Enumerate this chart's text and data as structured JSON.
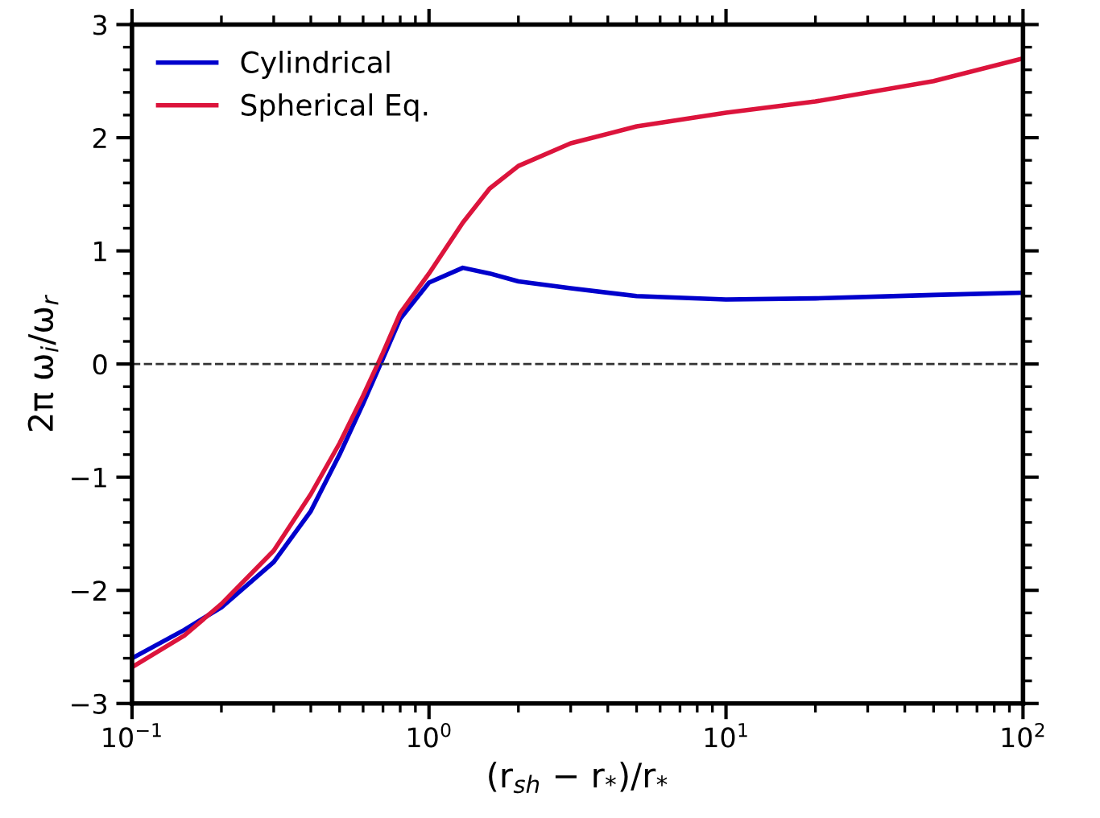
{
  "chart_data": {
    "type": "line",
    "xlabel": "(r$_{sh}$ − r$_{*}$)/r$_{*}$",
    "ylabel": "2π ω$_{i}$/ω$_{r}$",
    "log": "x",
    "xlim": [
      0.1,
      100
    ],
    "ylim": [
      -3,
      3
    ],
    "xticks": [
      {
        "value": 0.1,
        "label": "10$^{−1}$"
      },
      {
        "value": 1,
        "label": "10$^{0}$"
      },
      {
        "value": 10,
        "label": "10$^{1}$"
      },
      {
        "value": 100,
        "label": "10$^{2}$"
      }
    ],
    "yticks": [
      {
        "value": -3,
        "label": "−3"
      },
      {
        "value": -2,
        "label": "−2"
      },
      {
        "value": -1,
        "label": "−1"
      },
      0,
      1,
      2,
      3
    ],
    "grid": false,
    "legend": "top left",
    "line_style": "solid",
    "marker": "none",
    "ref_lines": [
      {
        "axis": "y",
        "value": 0,
        "color": "#333333",
        "line_style": "dashed"
      }
    ],
    "series": [
      {
        "name": "Cylindrical",
        "color": "#0000cc",
        "x": [
          0.1,
          0.15,
          0.2,
          0.3,
          0.4,
          0.5,
          0.6,
          0.7,
          0.8,
          1.0,
          1.3,
          1.6,
          2,
          3,
          5,
          10,
          20,
          50,
          100
        ],
        "values": [
          -2.6,
          -2.35,
          -2.15,
          -1.75,
          -1.3,
          -0.8,
          -0.35,
          0.05,
          0.4,
          0.72,
          0.85,
          0.8,
          0.73,
          0.67,
          0.6,
          0.57,
          0.58,
          0.61,
          0.63
        ]
      },
      {
        "name": "Spherical Eq.",
        "color": "#dc143c",
        "x": [
          0.1,
          0.15,
          0.2,
          0.3,
          0.4,
          0.5,
          0.6,
          0.7,
          0.8,
          1.0,
          1.3,
          1.6,
          2,
          3,
          5,
          10,
          20,
          50,
          100
        ],
        "values": [
          -2.68,
          -2.4,
          -2.12,
          -1.65,
          -1.15,
          -0.7,
          -0.28,
          0.1,
          0.45,
          0.8,
          1.25,
          1.55,
          1.75,
          1.95,
          2.1,
          2.22,
          2.32,
          2.5,
          2.7
        ]
      }
    ]
  }
}
